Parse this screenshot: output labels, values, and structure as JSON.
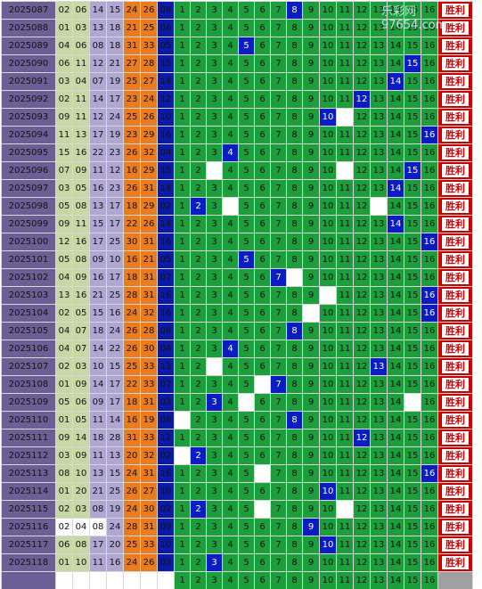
{
  "watermark": "乐彩网 97654.com",
  "result_label": "胜利",
  "cells": [
    "1",
    "2",
    "3",
    "4",
    "5",
    "6",
    "7",
    "8",
    "9",
    "10",
    "11",
    "12",
    "13",
    "14",
    "15",
    "16"
  ],
  "rows": [
    {
      "issue": "2025087",
      "reds": [
        "02",
        "06",
        "14",
        "15",
        "24",
        "26"
      ],
      "blue": "08",
      "hit": 8,
      "misses": []
    },
    {
      "issue": "2025088",
      "reds": [
        "01",
        "03",
        "13",
        "18",
        "21",
        "25"
      ],
      "blue": "06",
      "hit": null,
      "misses": []
    },
    {
      "issue": "2025089",
      "reds": [
        "04",
        "06",
        "08",
        "18",
        "31",
        "33"
      ],
      "blue": "05",
      "hit": 5,
      "misses": []
    },
    {
      "issue": "2025090",
      "reds": [
        "06",
        "11",
        "12",
        "21",
        "27",
        "28"
      ],
      "blue": "15",
      "hit": 15,
      "misses": []
    },
    {
      "issue": "2025091",
      "reds": [
        "03",
        "04",
        "07",
        "19",
        "25",
        "27"
      ],
      "blue": "14",
      "hit": 14,
      "misses": []
    },
    {
      "issue": "2025092",
      "reds": [
        "02",
        "11",
        "14",
        "17",
        "23",
        "24"
      ],
      "blue": "12",
      "hit": 12,
      "misses": []
    },
    {
      "issue": "2025093",
      "reds": [
        "09",
        "11",
        "12",
        "24",
        "25",
        "26"
      ],
      "blue": "10",
      "hit": 10,
      "misses": [
        11
      ]
    },
    {
      "issue": "2025094",
      "reds": [
        "11",
        "13",
        "17",
        "19",
        "23",
        "29"
      ],
      "blue": "16",
      "hit": 16,
      "misses": []
    },
    {
      "issue": "2025095",
      "reds": [
        "15",
        "16",
        "22",
        "23",
        "26",
        "32"
      ],
      "blue": "04",
      "hit": 4,
      "misses": []
    },
    {
      "issue": "2025096",
      "reds": [
        "07",
        "09",
        "11",
        "12",
        "16",
        "29"
      ],
      "blue": "15",
      "hit": 15,
      "misses": [
        3,
        11
      ]
    },
    {
      "issue": "2025097",
      "reds": [
        "03",
        "05",
        "16",
        "23",
        "26",
        "31"
      ],
      "blue": "14",
      "hit": 14,
      "misses": []
    },
    {
      "issue": "2025098",
      "reds": [
        "05",
        "08",
        "13",
        "17",
        "18",
        "29"
      ],
      "blue": "02",
      "hit": 2,
      "misses": [
        4,
        13
      ]
    },
    {
      "issue": "2025099",
      "reds": [
        "09",
        "11",
        "15",
        "17",
        "22",
        "26"
      ],
      "blue": "14",
      "hit": 14,
      "misses": []
    },
    {
      "issue": "2025100",
      "reds": [
        "12",
        "16",
        "17",
        "25",
        "30",
        "31"
      ],
      "blue": "16",
      "hit": 16,
      "misses": []
    },
    {
      "issue": "2025101",
      "reds": [
        "05",
        "08",
        "09",
        "10",
        "16",
        "21"
      ],
      "blue": "05",
      "hit": 5,
      "misses": []
    },
    {
      "issue": "2025102",
      "reds": [
        "04",
        "09",
        "16",
        "17",
        "18",
        "31"
      ],
      "blue": "07",
      "hit": 7,
      "misses": [
        8
      ]
    },
    {
      "issue": "2025103",
      "reds": [
        "13",
        "16",
        "21",
        "25",
        "28",
        "31"
      ],
      "blue": "16",
      "hit": 16,
      "misses": [
        10
      ]
    },
    {
      "issue": "2025104",
      "reds": [
        "02",
        "05",
        "15",
        "16",
        "24",
        "32"
      ],
      "blue": "16",
      "hit": 16,
      "misses": [
        9
      ]
    },
    {
      "issue": "2025105",
      "reds": [
        "04",
        "07",
        "18",
        "24",
        "26",
        "28"
      ],
      "blue": "08",
      "hit": 8,
      "misses": []
    },
    {
      "issue": "2025106",
      "reds": [
        "04",
        "07",
        "14",
        "22",
        "26",
        "30"
      ],
      "blue": "04",
      "hit": 4,
      "misses": []
    },
    {
      "issue": "2025107",
      "reds": [
        "02",
        "03",
        "10",
        "15",
        "25",
        "33"
      ],
      "blue": "13",
      "hit": 13,
      "misses": [
        3
      ]
    },
    {
      "issue": "2025108",
      "reds": [
        "01",
        "09",
        "14",
        "17",
        "22",
        "33"
      ],
      "blue": "07",
      "hit": 7,
      "misses": [
        6
      ]
    },
    {
      "issue": "2025109",
      "reds": [
        "05",
        "06",
        "09",
        "17",
        "18",
        "31"
      ],
      "blue": "03",
      "hit": 3,
      "misses": [
        5,
        15
      ]
    },
    {
      "issue": "2025110",
      "reds": [
        "01",
        "05",
        "11",
        "14",
        "16",
        "19"
      ],
      "blue": "08",
      "hit": 8,
      "misses": [
        1
      ]
    },
    {
      "issue": "2025111",
      "reds": [
        "09",
        "14",
        "18",
        "28",
        "31",
        "33"
      ],
      "blue": "12",
      "hit": 12,
      "misses": []
    },
    {
      "issue": "2025112",
      "reds": [
        "03",
        "09",
        "11",
        "13",
        "20",
        "32"
      ],
      "blue": "02",
      "hit": 2,
      "misses": [
        1
      ]
    },
    {
      "issue": "2025113",
      "reds": [
        "08",
        "10",
        "13",
        "15",
        "24",
        "31"
      ],
      "blue": "16",
      "hit": 16,
      "misses": [
        6
      ]
    },
    {
      "issue": "2025114",
      "reds": [
        "01",
        "20",
        "21",
        "25",
        "26",
        "27"
      ],
      "blue": "10",
      "hit": 10,
      "misses": []
    },
    {
      "issue": "2025115",
      "reds": [
        "02",
        "03",
        "08",
        "19",
        "24",
        "30"
      ],
      "blue": "02",
      "hit": 2,
      "misses": [
        6,
        11
      ]
    },
    {
      "issue": "2025116",
      "reds": [
        "02",
        "04",
        "08",
        "24",
        "28",
        "31"
      ],
      "blue": "09",
      "hit": 9,
      "misses": []
    },
    {
      "issue": "2025117",
      "reds": [
        "06",
        "08",
        "17",
        "20",
        "25",
        "33"
      ],
      "blue": "10",
      "hit": 10,
      "misses": []
    },
    {
      "issue": "2025118",
      "reds": [
        "01",
        "10",
        "11",
        "16",
        "24",
        "26"
      ],
      "blue": "03",
      "hit": 3,
      "misses": []
    }
  ],
  "footer_cells": [
    "1",
    "2",
    "3",
    "4",
    "5",
    "6",
    "7",
    "8",
    "9",
    "10",
    "11",
    "12",
    "13",
    "14",
    "15",
    "16"
  ]
}
